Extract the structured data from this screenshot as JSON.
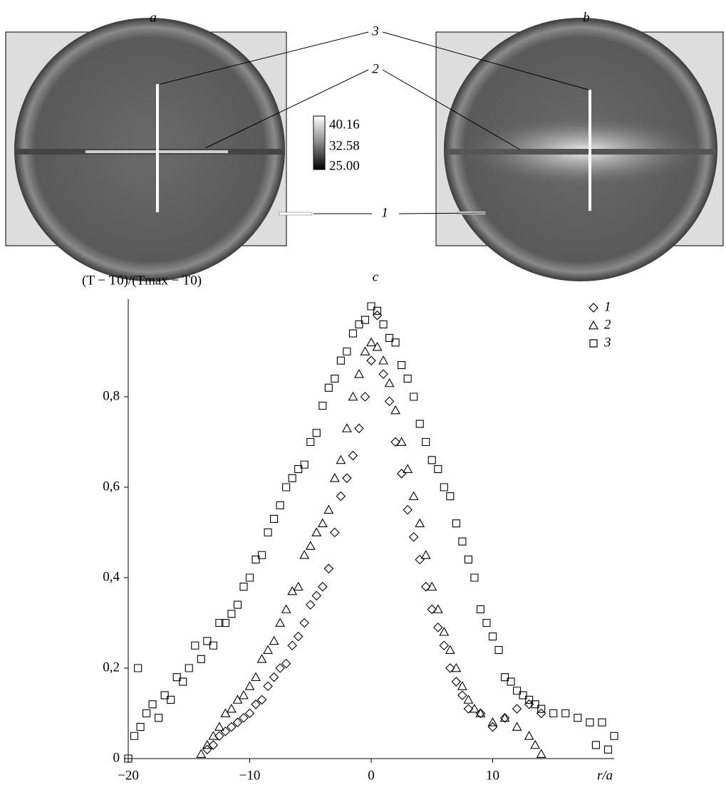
{
  "figure": {
    "panel_labels": [
      "a",
      "b"
    ],
    "callouts": [
      "3",
      "2",
      "1"
    ],
    "colorbar_labels": [
      "40.16",
      "32.58",
      "25.00"
    ]
  },
  "chart_data": {
    "type": "scatter",
    "title": "c",
    "y_label": "(T − T0)/(Tmax − T0)",
    "x_label": "r/a",
    "xlim": [
      -20,
      20
    ],
    "ylim": [
      0,
      1
    ],
    "xticks": [
      {
        "value": -20,
        "label": "−20"
      },
      {
        "value": -10,
        "label": "−10"
      },
      0,
      10
    ],
    "yticks": [
      0,
      {
        "value": 0.2,
        "label": "0,2"
      },
      {
        "value": 0.4,
        "label": "0,4"
      },
      {
        "value": 0.6,
        "label": "0,6"
      },
      {
        "value": 0.8,
        "label": "0,8"
      }
    ],
    "legend": "top-right",
    "series": [
      {
        "name": "1",
        "marker": "diamond",
        "color": "#000000",
        "x": [
          -13.5,
          -13,
          -12.5,
          -12,
          -11.5,
          -11,
          -10.5,
          -10,
          -9.5,
          -9,
          -8.5,
          -8,
          -7.5,
          -7,
          -6.5,
          -6,
          -5.5,
          -5,
          -4.5,
          -4,
          -3.5,
          -3,
          -2.5,
          -2,
          -1.5,
          -1,
          -0.5,
          0,
          0.5,
          1,
          1.5,
          2,
          2.5,
          3,
          3.5,
          4,
          4.5,
          5,
          5.5,
          6,
          6.5,
          7,
          7.5,
          8,
          9,
          10,
          11,
          12,
          13,
          14
        ],
        "values": [
          0.02,
          0.03,
          0.05,
          0.06,
          0.07,
          0.08,
          0.09,
          0.1,
          0.12,
          0.13,
          0.16,
          0.18,
          0.2,
          0.21,
          0.25,
          0.27,
          0.3,
          0.34,
          0.36,
          0.38,
          0.42,
          0.5,
          0.58,
          0.62,
          0.67,
          0.73,
          0.8,
          0.88,
          0.98,
          0.85,
          0.79,
          0.7,
          0.63,
          0.55,
          0.49,
          0.44,
          0.38,
          0.33,
          0.29,
          0.25,
          0.2,
          0.17,
          0.14,
          0.11,
          0.1,
          0.07,
          0.09,
          0.11,
          0.12,
          0.1
        ]
      },
      {
        "name": "2",
        "marker": "triangle",
        "color": "#000000",
        "x": [
          -14,
          -13.5,
          -13,
          -12.5,
          -12,
          -11.5,
          -11,
          -10.5,
          -10,
          -9.5,
          -9,
          -8.5,
          -8,
          -7.5,
          -7,
          -6.5,
          -6,
          -5.5,
          -5,
          -4.5,
          -4,
          -3.5,
          -3,
          -2.5,
          -2,
          -1.5,
          -1,
          -0.5,
          0,
          0.5,
          1,
          1.5,
          2,
          2.5,
          3,
          3.5,
          4,
          4.5,
          5,
          5.5,
          6,
          6.5,
          7,
          7.5,
          8,
          8.5,
          9,
          10,
          11,
          12,
          13,
          13.5,
          14
        ],
        "values": [
          0.01,
          0.03,
          0.05,
          0.07,
          0.1,
          0.11,
          0.13,
          0.14,
          0.16,
          0.18,
          0.22,
          0.24,
          0.26,
          0.3,
          0.33,
          0.37,
          0.38,
          0.45,
          0.47,
          0.5,
          0.52,
          0.55,
          0.62,
          0.66,
          0.73,
          0.8,
          0.85,
          0.9,
          0.92,
          0.91,
          0.88,
          0.83,
          0.77,
          0.7,
          0.64,
          0.58,
          0.52,
          0.45,
          0.38,
          0.33,
          0.28,
          0.24,
          0.2,
          0.16,
          0.13,
          0.11,
          0.1,
          0.08,
          0.09,
          0.07,
          0.05,
          0.03,
          0.01
        ]
      },
      {
        "name": "3",
        "marker": "square",
        "color": "#000000",
        "x": [
          -20,
          -19.5,
          -19.2,
          -19,
          -18.5,
          -18,
          -17.5,
          -17,
          -16.5,
          -16,
          -15.5,
          -15,
          -14.5,
          -14,
          -13.5,
          -13,
          -12.5,
          -12,
          -11.5,
          -11,
          -10.5,
          -10,
          -9.5,
          -9,
          -8.5,
          -8,
          -7.5,
          -7,
          -6.5,
          -6,
          -5.5,
          -5,
          -4.5,
          -4,
          -3.5,
          -3,
          -2.5,
          -2,
          -1.5,
          -1,
          -0.5,
          0,
          0.5,
          1,
          1.5,
          2,
          2.5,
          3,
          3.5,
          4,
          4.5,
          5,
          5.5,
          6,
          6.5,
          7,
          7.5,
          8,
          8.5,
          9,
          9.5,
          10,
          10.5,
          11,
          11.5,
          12,
          12.5,
          13,
          13.5,
          14,
          15,
          16,
          17,
          18,
          18.5,
          19,
          19.5,
          20
        ],
        "values": [
          0.0,
          0.05,
          0.2,
          0.07,
          0.1,
          0.12,
          0.09,
          0.14,
          0.13,
          0.18,
          0.17,
          0.2,
          0.25,
          0.22,
          0.26,
          0.25,
          0.3,
          0.3,
          0.32,
          0.34,
          0.38,
          0.4,
          0.44,
          0.45,
          0.5,
          0.53,
          0.56,
          0.6,
          0.62,
          0.64,
          0.65,
          0.7,
          0.72,
          0.78,
          0.82,
          0.84,
          0.88,
          0.9,
          0.94,
          0.96,
          0.97,
          1.0,
          0.99,
          0.96,
          0.93,
          0.92,
          0.87,
          0.84,
          0.8,
          0.74,
          0.7,
          0.66,
          0.64,
          0.6,
          0.58,
          0.52,
          0.48,
          0.44,
          0.4,
          0.33,
          0.3,
          0.27,
          0.24,
          0.18,
          0.17,
          0.15,
          0.14,
          0.13,
          0.12,
          0.11,
          0.1,
          0.1,
          0.09,
          0.08,
          0.03,
          0.08,
          0.02,
          0.05
        ]
      }
    ]
  }
}
